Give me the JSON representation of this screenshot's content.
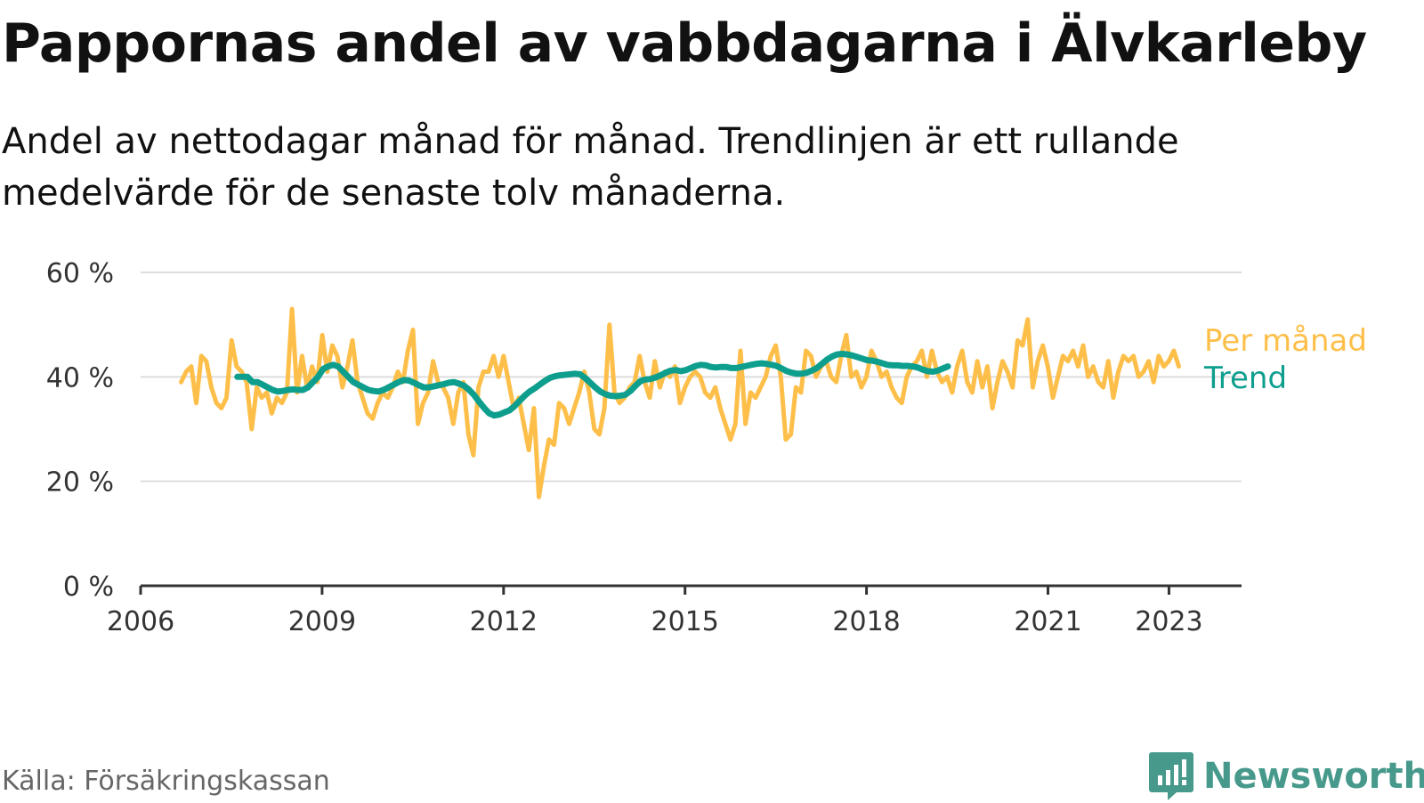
{
  "title": "Pappornas andel av vabbdagarna i Älvkarleby",
  "subtitle": "Andel av nettodagar månad för månad. Trendlinjen är ett rullande medelvärde för de senaste tolv månaderna.",
  "source": "Källa: Försäkringskassan",
  "brand": {
    "name": "Newsworthy",
    "icon": "newsworthy-logo-icon",
    "color": "#47998c"
  },
  "colors": {
    "monthly": "#fdbf49",
    "trend": "#0e9e8e",
    "grid": "#dddddd",
    "axis": "#333333"
  },
  "chart_data": {
    "type": "line",
    "title": "Pappornas andel av vabbdagarna i Älvkarleby",
    "xlabel": "",
    "ylabel": "",
    "ylim": [
      0,
      60
    ],
    "xlim": [
      2006,
      2024.2
    ],
    "yticks": [
      0,
      20,
      40,
      60
    ],
    "ytick_labels": [
      "0 %",
      "20 %",
      "40 %",
      "60 %"
    ],
    "xticks": [
      2006,
      2009,
      2012,
      2015,
      2018,
      2021,
      2023
    ],
    "xtick_labels": [
      "2006",
      "2009",
      "2012",
      "2015",
      "2018",
      "2021",
      "2023"
    ],
    "grid": true,
    "series": [
      {
        "name": "Per månad",
        "x_start": 2006.67,
        "step": 0.0833,
        "values": [
          39,
          41,
          42,
          35,
          44,
          43,
          38,
          35,
          34,
          36,
          47,
          42,
          41,
          39,
          30,
          38,
          36,
          37,
          33,
          36,
          35,
          37,
          53,
          37,
          44,
          38,
          42,
          39,
          48,
          41,
          46,
          44,
          38,
          42,
          47,
          39,
          36,
          33,
          32,
          35,
          37,
          36,
          38,
          41,
          39,
          45,
          49,
          31,
          35,
          37,
          43,
          39,
          38,
          36,
          31,
          37,
          39,
          29,
          25,
          38,
          41,
          41,
          44,
          40,
          44,
          39,
          34,
          36,
          31,
          26,
          34,
          17,
          23,
          28,
          27,
          35,
          34,
          31,
          34,
          37,
          41,
          37,
          30,
          29,
          34,
          50,
          37,
          35,
          36,
          38,
          39,
          44,
          39,
          36,
          43,
          38,
          41,
          40,
          42,
          35,
          38,
          40,
          41,
          40,
          37,
          36,
          38,
          34,
          31,
          28,
          31,
          45,
          31,
          37,
          36,
          38,
          40,
          44,
          46,
          40,
          28,
          29,
          38,
          37,
          45,
          44,
          40,
          42,
          43,
          40,
          39,
          44,
          48,
          40,
          41,
          38,
          40,
          45,
          43,
          40,
          41,
          38,
          36,
          35,
          40,
          42,
          43,
          45,
          40,
          45,
          41,
          39,
          40,
          37,
          42,
          45,
          39,
          37,
          43,
          38,
          42,
          34,
          39,
          43,
          41,
          38,
          47,
          46,
          51,
          38,
          43,
          46,
          42,
          36,
          40,
          44,
          43,
          45,
          42,
          46,
          40,
          42,
          39,
          38,
          43,
          36,
          41,
          44,
          43,
          44,
          40,
          41,
          43,
          39,
          44,
          42,
          43,
          45,
          42
        ]
      },
      {
        "name": "Trend",
        "x_start": 2007.6,
        "step": 0.0833,
        "values": [
          40,
          40,
          40,
          39,
          39,
          38.5,
          38,
          37.5,
          37.2,
          37.3,
          37.5,
          37.6,
          37.5,
          37.5,
          38,
          39,
          40,
          41.5,
          42,
          42.3,
          42,
          41,
          40,
          39,
          38.5,
          38,
          37.5,
          37.3,
          37.2,
          37.5,
          38,
          38.5,
          39,
          39.4,
          39.3,
          38.9,
          38.4,
          38,
          38,
          38.2,
          38.4,
          38.6,
          38.9,
          39,
          38.7,
          38.3,
          37.5,
          36.5,
          35.2,
          34,
          33,
          32.6,
          32.8,
          33.2,
          33.6,
          34.4,
          35.4,
          36.4,
          37.2,
          37.8,
          38.5,
          39.2,
          39.8,
          40.1,
          40.3,
          40.4,
          40.5,
          40.6,
          40.5,
          39.8,
          38.9,
          38,
          37.2,
          36.7,
          36.4,
          36.3,
          36.4,
          36.6,
          37.3,
          38.3,
          39.2,
          39.5,
          39.6,
          39.9,
          40.3,
          40.8,
          41.2,
          41.3,
          41.1,
          41.3,
          41.7,
          42.1,
          42.3,
          42.2,
          41.9,
          41.8,
          41.9,
          41.9,
          41.7,
          41.7,
          41.9,
          42.1,
          42.3,
          42.5,
          42.6,
          42.5,
          42.3,
          42.1,
          41.6,
          41.1,
          40.8,
          40.6,
          40.6,
          40.8,
          41.2,
          41.7,
          42.5,
          43.3,
          43.9,
          44.3,
          44.4,
          44.3,
          44.1,
          43.8,
          43.5,
          43.2,
          43.1,
          42.9,
          42.6,
          42.3,
          42.2,
          42.2,
          42.1,
          42.1,
          42,
          41.8,
          41.4,
          41.1,
          41,
          41.2,
          41.6,
          42
        ]
      }
    ],
    "legend": [
      "Per månad",
      "Trend"
    ],
    "legend_placement": "right, at line ends"
  }
}
